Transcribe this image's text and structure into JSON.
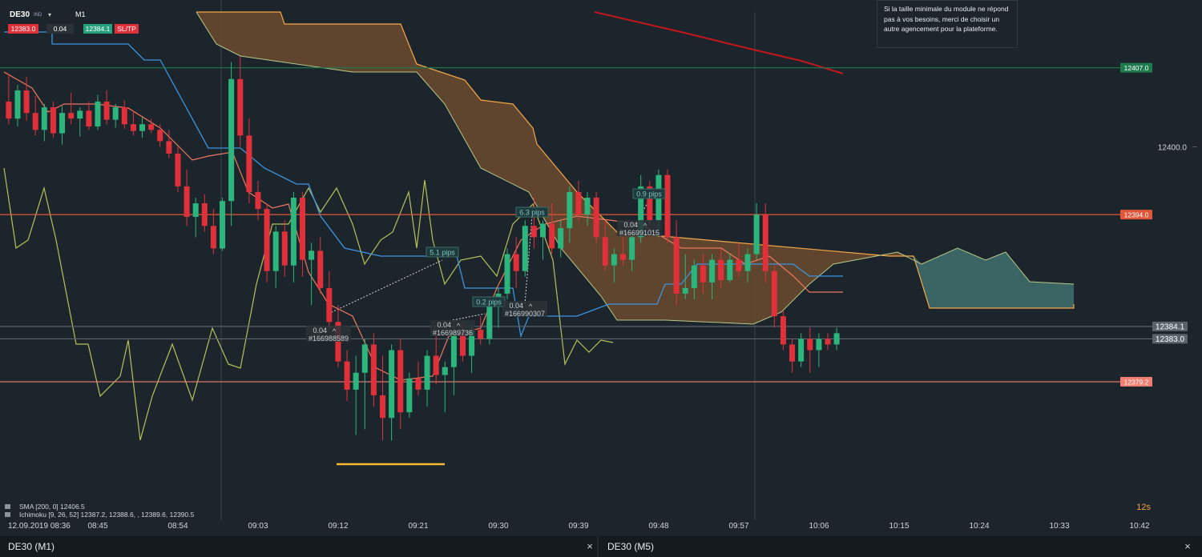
{
  "toolbar": {
    "symbol": "DE30",
    "market": "IND",
    "timeframe": "M1",
    "sell_price": "12383.0",
    "volume": "0.04",
    "buy_price": "12384.1",
    "sltp": "SL/TP"
  },
  "notification": "Si la taille minimale du module ne répond pas à vos besoins, merci de choisir un autre agencement pour la plateforme.",
  "price_axis": {
    "ylim": [
      12367.3,
      12413.0
    ],
    "ticks": [
      {
        "value": 12400,
        "label": "12400.0"
      }
    ]
  },
  "price_levels": [
    {
      "value": 12407.0,
      "label": "12407.0",
      "color": "#1f7a4d"
    },
    {
      "value": 12394.0,
      "label": "12394.0",
      "color": "#e0563b"
    },
    {
      "value": 12384.1,
      "label": "12384.1",
      "color": "#5a646c"
    },
    {
      "value": 12383.0,
      "label": "12383.0",
      "color": "#5a646c"
    },
    {
      "value": 12379.2,
      "label": "12379.2",
      "color": "#f07f72"
    }
  ],
  "candles": {
    "up_color": "#2cb57c",
    "down_color": "#e0313b",
    "open": [
      12404.0,
      12402.5,
      12405.0,
      12403.0,
      12401.5,
      12403.5,
      12401.2,
      12403.0,
      12402.5,
      12403.2,
      12401.8,
      12404.0,
      12402.4,
      12403.5,
      12402.0,
      12401.4,
      12402.0,
      12401.5,
      12400.5,
      12399.4,
      12396.5,
      12393.8,
      12395.0,
      12393.0,
      12391.0,
      12395.2,
      12406.0,
      12401.0,
      12396.0,
      12394.5,
      12389.0,
      12392.5,
      12389.5,
      12395.5,
      12390.0,
      12390.8,
      12387.5,
      12384.5,
      12381.0,
      12378.5,
      12380.0,
      12382.5,
      12378.0,
      12376.0,
      12382.0,
      12376.5,
      12379.5,
      12378.5,
      12381.5,
      12379.8,
      12380.5,
      12383.5,
      12381.5,
      12383.8,
      12383.0,
      12386.0,
      12387.0,
      12390.5,
      12389.0,
      12393.0,
      12392.0,
      12393.2,
      12391.0,
      12392.8,
      12396.0,
      12394.0,
      12395.5,
      12392.0,
      12389.5,
      12390.5,
      12390.0,
      12392.0,
      12396.5,
      12393.5,
      12397.5,
      12392.0,
      12387.0,
      12387.5,
      12389.5,
      12388.0,
      12390.0,
      12388.2,
      12390.0,
      12389.0,
      12390.5,
      12394.0,
      12389.0,
      12385.0,
      12382.5,
      12381.0,
      12383.0,
      12382.0,
      12383.0,
      12382.5
    ],
    "high": [
      12406.5,
      12405.5,
      12406.2,
      12404.5,
      12403.8,
      12404.0,
      12403.6,
      12404.8,
      12403.5,
      12404.0,
      12404.6,
      12405.0,
      12403.8,
      12404.1,
      12403.2,
      12402.6,
      12402.5,
      12402.0,
      12401.5,
      12400.0,
      12398.0,
      12395.5,
      12395.8,
      12394.5,
      12395.5,
      12407.5,
      12408.0,
      12402.5,
      12397.0,
      12395.0,
      12393.0,
      12393.5,
      12396.0,
      12396.0,
      12391.5,
      12392.0,
      12389.0,
      12386.0,
      12382.0,
      12381.5,
      12383.0,
      12383.5,
      12381.5,
      12382.5,
      12383.0,
      12380.0,
      12381.0,
      12382.0,
      12383.5,
      12381.0,
      12384.0,
      12384.5,
      12384.2,
      12385.0,
      12386.5,
      12387.5,
      12391.0,
      12392.0,
      12393.5,
      12395.5,
      12393.5,
      12395.0,
      12393.5,
      12396.5,
      12397.0,
      12396.0,
      12396.0,
      12393.5,
      12391.0,
      12392.0,
      12392.5,
      12397.5,
      12397.0,
      12398.0,
      12398.0,
      12393.5,
      12390.5,
      12390.0,
      12390.5,
      12390.5,
      12391.0,
      12390.5,
      12391.5,
      12391.0,
      12395.0,
      12395.0,
      12389.5,
      12385.5,
      12383.0,
      12383.5,
      12384.0,
      12383.5,
      12383.5,
      12384.0
    ],
    "low": [
      12402.0,
      12401.8,
      12402.3,
      12401.0,
      12400.5,
      12400.8,
      12400.2,
      12402.0,
      12400.9,
      12401.5,
      12401.5,
      12402.0,
      12401.7,
      12401.6,
      12401.0,
      12400.8,
      12401.2,
      12400.0,
      12399.0,
      12396.0,
      12393.0,
      12392.0,
      12392.5,
      12390.5,
      12390.8,
      12393.0,
      12400.0,
      12395.0,
      12393.5,
      12388.0,
      12387.5,
      12388.5,
      12388.0,
      12388.5,
      12386.0,
      12387.0,
      12384.0,
      12380.5,
      12377.5,
      12374.5,
      12375.0,
      12377.0,
      12374.0,
      12374.0,
      12375.0,
      12376.0,
      12378.0,
      12377.0,
      12379.0,
      12376.5,
      12378.0,
      12381.0,
      12380.0,
      12382.5,
      12382.5,
      12384.0,
      12386.5,
      12387.5,
      12388.5,
      12391.0,
      12390.0,
      12390.5,
      12390.2,
      12391.5,
      12393.5,
      12393.0,
      12391.5,
      12389.0,
      12388.0,
      12389.5,
      12389.0,
      12391.5,
      12393.0,
      12392.0,
      12391.5,
      12386.0,
      12386.5,
      12386.5,
      12387.0,
      12386.5,
      12387.5,
      12388.0,
      12388.5,
      12388.0,
      12390.0,
      12388.0,
      12384.0,
      12382.0,
      12380.0,
      12380.5,
      12380.0,
      12380.5,
      12382.0,
      12382.0
    ],
    "close": [
      12402.5,
      12405.0,
      12403.0,
      12401.5,
      12403.5,
      12401.2,
      12403.0,
      12402.5,
      12403.2,
      12401.8,
      12404.0,
      12402.4,
      12403.5,
      12402.0,
      12401.4,
      12402.0,
      12401.5,
      12400.5,
      12399.4,
      12396.5,
      12393.8,
      12395.0,
      12393.0,
      12391.0,
      12395.2,
      12406.0,
      12401.0,
      12396.0,
      12394.5,
      12389.0,
      12392.5,
      12389.5,
      12395.5,
      12390.0,
      12390.8,
      12387.5,
      12384.5,
      12381.0,
      12378.5,
      12380.0,
      12382.5,
      12378.0,
      12376.0,
      12382.0,
      12376.5,
      12379.5,
      12378.5,
      12381.5,
      12379.8,
      12380.5,
      12383.5,
      12381.5,
      12383.8,
      12383.0,
      12386.0,
      12387.0,
      12390.5,
      12389.0,
      12393.0,
      12392.0,
      12393.2,
      12391.0,
      12392.8,
      12396.0,
      12394.0,
      12395.5,
      12392.0,
      12389.5,
      12390.5,
      12390.0,
      12392.0,
      12396.5,
      12393.5,
      12397.5,
      12392.0,
      12387.0,
      12387.5,
      12389.5,
      12388.0,
      12390.0,
      12388.2,
      12390.0,
      12389.0,
      12390.5,
      12394.0,
      12389.0,
      12385.0,
      12382.5,
      12381.0,
      12383.0,
      12382.0,
      12383.0,
      12382.5,
      12383.5
    ]
  },
  "time_axis": [
    "12.09.2019 08:36",
    "08:45",
    "08:54",
    "09:03",
    "09:12",
    "09:21",
    "09:30",
    "09:39",
    "09:48",
    "09:57",
    "10:06",
    "10:15",
    "10:24",
    "10:33",
    "10:42"
  ],
  "orders": [
    {
      "volume": "0.04",
      "ticket": "#166988589"
    },
    {
      "volume": "0.04",
      "ticket": "#166989736"
    },
    {
      "volume": "0.04",
      "ticket": "#166990307"
    },
    {
      "volume": "0.04",
      "ticket": "#166991015"
    }
  ],
  "pips_labels": [
    "5.1 pips",
    "0.2 pips",
    "6.3 pips",
    "0.9 pips"
  ],
  "indicators": [
    "SMA [200, 0] 12406.5",
    "Ichimoku [9, 26, 52] 12387.2, 12388.6, , 12389.6, 12390.5"
  ],
  "countdown": "12s",
  "tabs": [
    "DE30 (M1)",
    "DE30 (M5)"
  ]
}
